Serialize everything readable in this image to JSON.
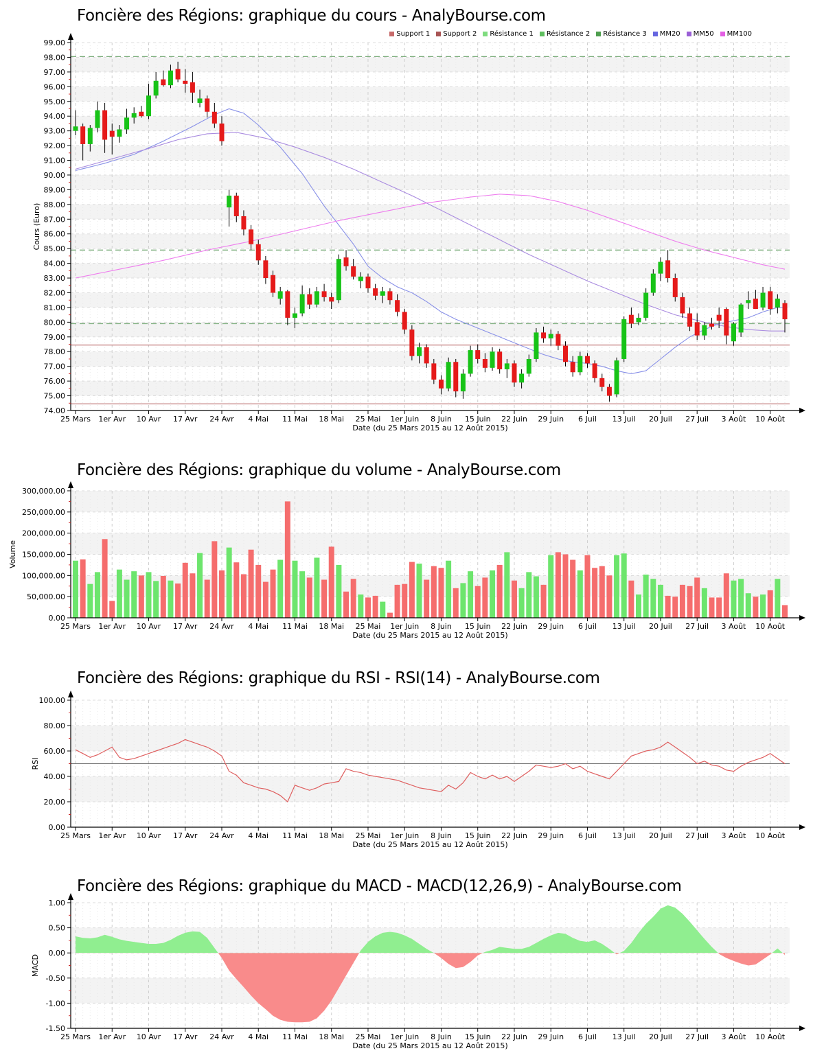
{
  "chart_data": [
    {
      "type": "candlestick",
      "title": "Foncière des Régions: graphique du cours - AnalyBourse.com",
      "ylabel": "Cours (Euro)",
      "xlabel": "Date (du 25 Mars 2015 au 12 Août 2015)",
      "ylim": [
        74,
        99
      ],
      "ytick": 1,
      "grid": "on",
      "legend_position": "top-right",
      "xtick_labels": [
        "25 Mars",
        "1er Avr",
        "10 Avr",
        "17 Avr",
        "24 Avr",
        "4 Mai",
        "11 Mai",
        "18 Mai",
        "25 Mai",
        "1er Juin",
        "8 Juin",
        "15 Juin",
        "22 Juin",
        "29 Juin",
        "6 Juil",
        "13 Juil",
        "20 Juil",
        "27 Juil",
        "3 Août",
        "10 Août"
      ],
      "xtick_every": 5,
      "legend": [
        {
          "label": "Support 1",
          "color": "#C76A6A"
        },
        {
          "label": "Support 2",
          "color": "#A85454"
        },
        {
          "label": "Résistance 1",
          "color": "#7FDC7F"
        },
        {
          "label": "Résistance 2",
          "color": "#5FBF5F"
        },
        {
          "label": "Résistance 3",
          "color": "#4E9E4E"
        },
        {
          "label": "MM20",
          "color": "#6666E0"
        },
        {
          "label": "MM50",
          "color": "#9A5FD6"
        },
        {
          "label": "MM100",
          "color": "#E35FE3"
        }
      ],
      "resistance_levels": [
        98.05,
        84.9,
        79.9
      ],
      "support_levels": [
        78.45,
        74.45
      ],
      "up_color": "#17C317",
      "down_color": "#E51A1A",
      "mm20_color": "#8890E8",
      "mm50_color": "#A98BE0",
      "mm100_color": "#EE7DEE",
      "resistance_color": "#7FAF7F",
      "support_color": "#C07878",
      "candles": [
        [
          93.0,
          94.4,
          92.7,
          93.3
        ],
        [
          93.3,
          93.5,
          91.0,
          92.1
        ],
        [
          92.1,
          93.4,
          91.6,
          93.2
        ],
        [
          93.2,
          95.0,
          92.9,
          94.4
        ],
        [
          94.4,
          94.9,
          91.5,
          92.4
        ],
        [
          93.0,
          93.5,
          91.4,
          92.6
        ],
        [
          92.6,
          93.4,
          92.2,
          93.1
        ],
        [
          93.1,
          94.5,
          92.8,
          93.9
        ],
        [
          93.9,
          94.6,
          93.5,
          94.2
        ],
        [
          94.3,
          94.7,
          93.9,
          94.0
        ],
        [
          94.0,
          96.2,
          93.8,
          95.4
        ],
        [
          95.4,
          97.0,
          95.2,
          96.4
        ],
        [
          96.5,
          97.1,
          96.0,
          96.1
        ],
        [
          96.1,
          97.5,
          95.9,
          97.1
        ],
        [
          97.2,
          97.7,
          96.3,
          96.5
        ],
        [
          96.4,
          97.2,
          95.6,
          96.2
        ],
        [
          96.3,
          97.0,
          94.9,
          95.6
        ],
        [
          94.9,
          95.8,
          94.6,
          95.2
        ],
        [
          95.2,
          95.4,
          93.9,
          94.3
        ],
        [
          94.3,
          94.9,
          93.2,
          93.5
        ],
        [
          93.5,
          94.0,
          92.0,
          92.3
        ],
        [
          87.8,
          89.0,
          86.5,
          88.6
        ],
        [
          88.6,
          88.8,
          86.8,
          87.2
        ],
        [
          87.2,
          87.6,
          85.9,
          86.3
        ],
        [
          86.3,
          86.6,
          84.9,
          85.3
        ],
        [
          85.3,
          85.6,
          83.9,
          84.2
        ],
        [
          84.2,
          84.5,
          82.6,
          83.0
        ],
        [
          83.2,
          83.5,
          81.7,
          82.0
        ],
        [
          81.6,
          82.4,
          81.2,
          82.1
        ],
        [
          82.1,
          82.2,
          79.8,
          80.3
        ],
        [
          80.3,
          81.0,
          79.6,
          80.6
        ],
        [
          80.6,
          82.5,
          80.4,
          81.9
        ],
        [
          81.9,
          82.3,
          80.9,
          81.2
        ],
        [
          81.2,
          82.4,
          81.0,
          82.1
        ],
        [
          82.1,
          82.6,
          81.4,
          81.7
        ],
        [
          81.7,
          82.0,
          80.9,
          81.4
        ],
        [
          81.5,
          84.6,
          81.3,
          84.3
        ],
        [
          84.4,
          84.9,
          83.5,
          83.8
        ],
        [
          83.8,
          84.3,
          82.9,
          83.1
        ],
        [
          82.8,
          83.4,
          82.3,
          83.1
        ],
        [
          83.1,
          83.3,
          82.0,
          82.3
        ],
        [
          82.3,
          82.6,
          81.5,
          81.8
        ],
        [
          81.8,
          82.4,
          81.3,
          82.1
        ],
        [
          82.1,
          82.3,
          81.2,
          81.5
        ],
        [
          81.5,
          81.9,
          80.4,
          80.7
        ],
        [
          80.7,
          80.9,
          79.2,
          79.5
        ],
        [
          79.5,
          79.8,
          77.4,
          77.7
        ],
        [
          77.7,
          78.6,
          77.2,
          78.3
        ],
        [
          78.3,
          78.5,
          76.9,
          77.2
        ],
        [
          77.2,
          77.5,
          75.8,
          76.1
        ],
        [
          76.1,
          76.4,
          75.1,
          75.5
        ],
        [
          75.5,
          77.6,
          75.3,
          77.3
        ],
        [
          77.3,
          77.5,
          74.9,
          75.3
        ],
        [
          75.3,
          76.8,
          74.8,
          76.5
        ],
        [
          76.5,
          78.4,
          76.3,
          78.1
        ],
        [
          78.1,
          78.5,
          77.2,
          77.5
        ],
        [
          77.5,
          77.9,
          76.6,
          76.9
        ],
        [
          76.9,
          78.3,
          76.7,
          78.0
        ],
        [
          78.0,
          78.2,
          76.5,
          76.8
        ],
        [
          76.8,
          77.5,
          76.2,
          77.2
        ],
        [
          77.2,
          77.4,
          75.6,
          75.9
        ],
        [
          75.9,
          76.8,
          75.5,
          76.5
        ],
        [
          76.5,
          77.8,
          76.3,
          77.5
        ],
        [
          77.5,
          79.6,
          77.3,
          79.3
        ],
        [
          79.3,
          79.7,
          78.6,
          78.9
        ],
        [
          78.9,
          79.5,
          78.4,
          79.2
        ],
        [
          79.2,
          79.4,
          78.1,
          78.4
        ],
        [
          78.4,
          78.7,
          77.0,
          77.3
        ],
        [
          77.3,
          77.7,
          76.3,
          76.6
        ],
        [
          76.6,
          78.0,
          76.4,
          77.7
        ],
        [
          77.7,
          77.9,
          76.9,
          77.2
        ],
        [
          77.2,
          77.4,
          75.9,
          76.2
        ],
        [
          76.2,
          76.5,
          75.3,
          75.6
        ],
        [
          75.6,
          75.8,
          74.6,
          75.0
        ],
        [
          75.1,
          77.6,
          74.9,
          77.4
        ],
        [
          77.5,
          80.4,
          77.3,
          80.2
        ],
        [
          80.5,
          81.0,
          79.6,
          79.9
        ],
        [
          80.0,
          80.6,
          79.8,
          80.3
        ],
        [
          80.3,
          82.3,
          80.1,
          82.0
        ],
        [
          82.0,
          83.6,
          81.8,
          83.3
        ],
        [
          83.3,
          84.4,
          82.8,
          84.1
        ],
        [
          84.2,
          84.9,
          82.7,
          83.0
        ],
        [
          83.0,
          83.3,
          81.4,
          81.7
        ],
        [
          81.7,
          82.0,
          80.3,
          80.6
        ],
        [
          80.6,
          81.0,
          79.4,
          79.7
        ],
        [
          80.0,
          80.6,
          78.8,
          79.1
        ],
        [
          79.1,
          80.0,
          78.8,
          79.8
        ],
        [
          79.9,
          80.3,
          79.5,
          79.7
        ],
        [
          80.5,
          81.0,
          79.6,
          80.1
        ],
        [
          80.9,
          81.0,
          78.5,
          79.1
        ],
        [
          78.7,
          80.0,
          78.4,
          79.9
        ],
        [
          79.3,
          81.3,
          79.0,
          81.2
        ],
        [
          81.3,
          82.1,
          80.9,
          81.5
        ],
        [
          81.6,
          82.2,
          81.0,
          80.9
        ],
        [
          81.0,
          82.4,
          80.8,
          82.0
        ],
        [
          82.1,
          82.4,
          80.5,
          80.9
        ],
        [
          81.0,
          81.9,
          80.6,
          81.6
        ],
        [
          81.3,
          81.5,
          79.3,
          80.2
        ]
      ],
      "mm20_keypoints": [
        [
          0,
          90.3
        ],
        [
          4,
          90.8
        ],
        [
          8,
          91.4
        ],
        [
          12,
          92.3
        ],
        [
          16,
          93.3
        ],
        [
          19,
          94.1
        ],
        [
          21,
          94.5
        ],
        [
          23,
          94.2
        ],
        [
          25,
          93.4
        ],
        [
          28,
          91.9
        ],
        [
          31,
          90.1
        ],
        [
          34,
          87.9
        ],
        [
          36,
          86.6
        ],
        [
          38,
          85.3
        ],
        [
          40,
          83.8
        ],
        [
          42,
          83.0
        ],
        [
          44,
          82.4
        ],
        [
          46,
          82.0
        ],
        [
          48,
          81.4
        ],
        [
          50,
          80.7
        ],
        [
          52,
          80.2
        ],
        [
          54,
          79.8
        ],
        [
          56,
          79.4
        ],
        [
          58,
          79.0
        ],
        [
          60,
          78.6
        ],
        [
          62,
          78.2
        ],
        [
          64,
          77.8
        ],
        [
          66,
          77.5
        ],
        [
          68,
          77.3
        ],
        [
          70,
          77.2
        ],
        [
          72,
          77.0
        ],
        [
          74,
          76.7
        ],
        [
          76,
          76.5
        ],
        [
          78,
          76.7
        ],
        [
          80,
          77.5
        ],
        [
          82,
          78.3
        ],
        [
          84,
          79.0
        ],
        [
          86,
          79.5
        ],
        [
          88,
          79.9
        ],
        [
          90,
          80.1
        ],
        [
          92,
          80.3
        ],
        [
          94,
          80.7
        ],
        [
          96,
          81.0
        ],
        [
          97,
          81.0
        ]
      ],
      "mm50_keypoints": [
        [
          0,
          90.4
        ],
        [
          5,
          91.1
        ],
        [
          10,
          91.8
        ],
        [
          14,
          92.4
        ],
        [
          18,
          92.8
        ],
        [
          22,
          92.9
        ],
        [
          26,
          92.5
        ],
        [
          30,
          91.9
        ],
        [
          34,
          91.2
        ],
        [
          38,
          90.4
        ],
        [
          42,
          89.5
        ],
        [
          46,
          88.6
        ],
        [
          50,
          87.6
        ],
        [
          54,
          86.6
        ],
        [
          58,
          85.6
        ],
        [
          62,
          84.6
        ],
        [
          66,
          83.7
        ],
        [
          70,
          82.8
        ],
        [
          74,
          82.0
        ],
        [
          78,
          81.2
        ],
        [
          82,
          80.5
        ],
        [
          86,
          80.0
        ],
        [
          89,
          79.7
        ],
        [
          92,
          79.5
        ],
        [
          95,
          79.4
        ],
        [
          97,
          79.4
        ]
      ],
      "mm100_keypoints": [
        [
          0,
          83.0
        ],
        [
          6,
          83.6
        ],
        [
          12,
          84.2
        ],
        [
          18,
          84.9
        ],
        [
          24,
          85.5
        ],
        [
          30,
          86.2
        ],
        [
          36,
          86.9
        ],
        [
          42,
          87.5
        ],
        [
          48,
          88.1
        ],
        [
          54,
          88.5
        ],
        [
          58,
          88.7
        ],
        [
          62,
          88.6
        ],
        [
          66,
          88.2
        ],
        [
          70,
          87.6
        ],
        [
          74,
          86.9
        ],
        [
          78,
          86.2
        ],
        [
          82,
          85.5
        ],
        [
          86,
          84.9
        ],
        [
          90,
          84.4
        ],
        [
          94,
          83.9
        ],
        [
          97,
          83.6
        ]
      ]
    },
    {
      "type": "bar",
      "title": "Foncière des Régions: graphique du volume - AnalyBourse.com",
      "ylabel": "Volume",
      "xlabel": "Date (du 25 Mars 2015 au 12 Août 2015)",
      "ylim": [
        0,
        300000
      ],
      "ytick": 50000,
      "grid": "on",
      "up_color": "#6DE56D",
      "down_color": "#F56D6D",
      "values": [
        135000,
        138000,
        80000,
        108000,
        186000,
        40000,
        114000,
        90000,
        110000,
        100000,
        108000,
        87000,
        99000,
        88000,
        81000,
        130000,
        105000,
        153000,
        90000,
        181000,
        112000,
        166000,
        131000,
        103000,
        161000,
        125000,
        85000,
        114000,
        137000,
        275000,
        135000,
        110000,
        95000,
        142000,
        90000,
        168000,
        125000,
        62000,
        92000,
        55000,
        48000,
        52000,
        38000,
        12000,
        78000,
        80000,
        132000,
        128000,
        90000,
        122000,
        118000,
        135000,
        70000,
        82000,
        110000,
        75000,
        95000,
        112000,
        125000,
        155000,
        88000,
        70000,
        108000,
        98000,
        78000,
        148000,
        155000,
        150000,
        137000,
        112000,
        148000,
        118000,
        122000,
        100000,
        148000,
        152000,
        88000,
        55000,
        102000,
        92000,
        78000,
        52000,
        50000,
        78000,
        75000,
        95000,
        70000,
        48000,
        48000,
        105000,
        88000,
        92000,
        58000,
        50000,
        55000,
        65000,
        92000,
        30000
      ]
    },
    {
      "type": "line",
      "title": "Foncière des Régions: graphique du RSI - RSI(14) - AnalyBourse.com",
      "ylabel": "RSI",
      "xlabel": "Date (du 25 Mars 2015 au 12 Août 2015)",
      "ylim": [
        0,
        100
      ],
      "ytick": 20,
      "grid": "on",
      "midline": 50,
      "line_color": "#DF5F5F",
      "values": [
        61,
        58,
        55,
        57,
        60,
        63,
        55,
        53,
        54,
        56,
        58,
        60,
        62,
        64,
        66,
        69,
        67,
        65,
        63,
        60,
        56,
        44,
        41,
        35,
        33,
        31,
        30,
        28,
        25,
        20,
        33,
        31,
        29,
        31,
        34,
        35,
        36,
        46,
        44,
        43,
        41,
        40,
        39,
        38,
        37,
        35,
        33,
        31,
        30,
        29,
        28,
        33,
        30,
        35,
        43,
        40,
        38,
        41,
        38,
        40,
        36,
        40,
        44,
        49,
        48,
        47,
        48,
        50,
        46,
        48,
        44,
        42,
        40,
        38,
        44,
        50,
        56,
        58,
        60,
        61,
        63,
        67,
        63,
        59,
        55,
        50,
        52,
        49,
        48,
        45,
        44,
        48,
        51,
        53,
        55,
        58,
        54,
        50
      ]
    },
    {
      "type": "area",
      "title": "Foncière des Régions: graphique du MACD - MACD(12,26,9) - AnalyBourse.com",
      "ylabel": "MACD",
      "xlabel": "Date (du 25 Mars 2015 au 12 Août 2015)",
      "ylim": [
        -1.5,
        1.0
      ],
      "ytick": 0.5,
      "grid": "on",
      "pos_color": "#90EE90",
      "neg_color": "#F98B8B",
      "values": [
        0.33,
        0.3,
        0.29,
        0.31,
        0.36,
        0.32,
        0.27,
        0.24,
        0.22,
        0.2,
        0.18,
        0.18,
        0.2,
        0.26,
        0.34,
        0.4,
        0.43,
        0.42,
        0.3,
        0.1,
        -0.1,
        -0.35,
        -0.52,
        -0.68,
        -0.85,
        -1.0,
        -1.12,
        -1.25,
        -1.33,
        -1.37,
        -1.38,
        -1.38,
        -1.37,
        -1.3,
        -1.15,
        -0.95,
        -0.7,
        -0.45,
        -0.2,
        0.05,
        0.22,
        0.33,
        0.4,
        0.42,
        0.4,
        0.35,
        0.28,
        0.18,
        0.08,
        0.0,
        -0.1,
        -0.22,
        -0.3,
        -0.28,
        -0.18,
        -0.05,
        0.02,
        0.06,
        0.12,
        0.1,
        0.08,
        0.08,
        0.12,
        0.2,
        0.28,
        0.35,
        0.4,
        0.38,
        0.3,
        0.24,
        0.22,
        0.25,
        0.18,
        0.08,
        -0.03,
        0.04,
        0.2,
        0.4,
        0.58,
        0.72,
        0.88,
        0.95,
        0.9,
        0.78,
        0.62,
        0.45,
        0.28,
        0.12,
        -0.02,
        -0.1,
        -0.16,
        -0.21,
        -0.25,
        -0.23,
        -0.13,
        -0.03,
        0.09,
        -0.04
      ]
    }
  ]
}
